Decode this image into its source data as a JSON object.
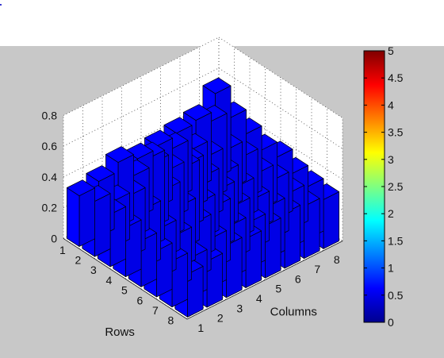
{
  "chart_data": {
    "type": "bar3",
    "xlabel": "Columns",
    "ylabel": "Rows",
    "zlim": [
      0,
      0.8
    ],
    "z_ticks": [
      "0",
      "0.2",
      "0.4",
      "0.6",
      "0.8"
    ],
    "row_ticks": [
      "1",
      "2",
      "3",
      "4",
      "5",
      "6",
      "7",
      "8"
    ],
    "column_ticks": [
      "1",
      "2",
      "3",
      "4",
      "5",
      "6",
      "7",
      "8"
    ],
    "grid": true,
    "bar_color": "#0000ff",
    "values": [
      [
        0.33,
        0.36,
        0.42,
        0.38,
        0.4,
        0.42,
        0.44,
        0.55
      ],
      [
        0.36,
        0.3,
        0.4,
        0.42,
        0.45,
        0.38,
        0.5,
        0.46
      ],
      [
        0.34,
        0.4,
        0.58,
        0.44,
        0.42,
        0.4,
        0.38,
        0.42
      ],
      [
        0.32,
        0.38,
        0.44,
        0.52,
        0.4,
        0.36,
        0.4,
        0.38
      ],
      [
        0.3,
        0.32,
        0.4,
        0.36,
        0.38,
        0.34,
        0.36,
        0.4
      ],
      [
        0.3,
        0.34,
        0.36,
        0.4,
        0.34,
        0.32,
        0.38,
        0.36
      ],
      [
        0.3,
        0.26,
        0.32,
        0.34,
        0.3,
        0.34,
        0.36,
        0.34
      ],
      [
        0.28,
        0.3,
        0.34,
        0.32,
        0.34,
        0.36,
        0.34,
        0.32
      ]
    ],
    "colorbar": {
      "ticks": [
        "0",
        "0.5",
        "1",
        "1.5",
        "2",
        "2.5",
        "3",
        "3.5",
        "4",
        "4.5",
        "5"
      ],
      "lim": [
        0,
        5
      ],
      "colormap": "jet"
    }
  }
}
